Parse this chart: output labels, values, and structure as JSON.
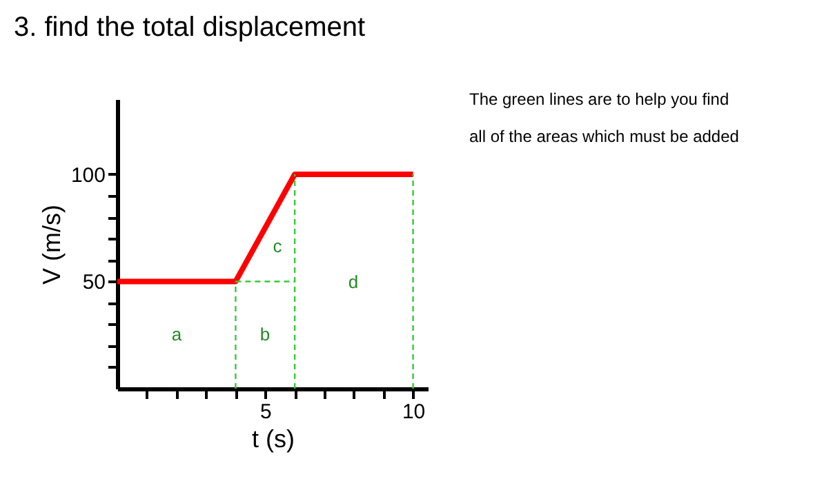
{
  "chart_data": {
    "type": "line",
    "title": "3. find the total displacement",
    "xlabel": "t (s)",
    "ylabel": "V (m/s)",
    "xlim": [
      0,
      10.5
    ],
    "ylim": [
      0,
      135
    ],
    "xticks": [
      {
        "value": 1,
        "label": null
      },
      {
        "value": 2,
        "label": null
      },
      {
        "value": 3,
        "label": null
      },
      {
        "value": 4,
        "label": null
      },
      5,
      {
        "value": 6,
        "label": null
      },
      {
        "value": 7,
        "label": null
      },
      {
        "value": 8,
        "label": null
      },
      {
        "value": 9,
        "label": null
      },
      10
    ],
    "yticks": [
      {
        "value": 10,
        "label": null
      },
      {
        "value": 20,
        "label": null
      },
      {
        "value": 30,
        "label": null
      },
      {
        "value": 40,
        "label": null
      },
      50,
      {
        "value": 60,
        "label": null
      },
      {
        "value": 70,
        "label": null
      },
      {
        "value": 80,
        "label": null
      },
      {
        "value": 90,
        "label": null
      },
      100
    ],
    "grid": false,
    "marker": "none",
    "series": [
      {
        "color": "#ff0000",
        "x": [
          0,
          4,
          6,
          10
        ],
        "values": [
          50,
          50,
          100,
          100
        ],
        "line_style": "solid"
      },
      {
        "color": "#33cc33",
        "x": [
          4,
          4
        ],
        "values": [
          0,
          50
        ],
        "line_style": "dashed"
      },
      {
        "color": "#33cc33",
        "x": [
          4,
          6
        ],
        "values": [
          50,
          50
        ],
        "line_style": "dashed"
      },
      {
        "color": "#33cc33",
        "x": [
          6,
          6
        ],
        "values": [
          0,
          100
        ],
        "line_style": "dashed"
      },
      {
        "color": "#33cc33",
        "x": [
          10,
          10
        ],
        "values": [
          0,
          100
        ],
        "line_style": "dashed"
      }
    ],
    "annotations": [
      "a",
      "b",
      "c",
      "d",
      "The green lines are to help you find",
      "all of the areas which must be added"
    ]
  }
}
